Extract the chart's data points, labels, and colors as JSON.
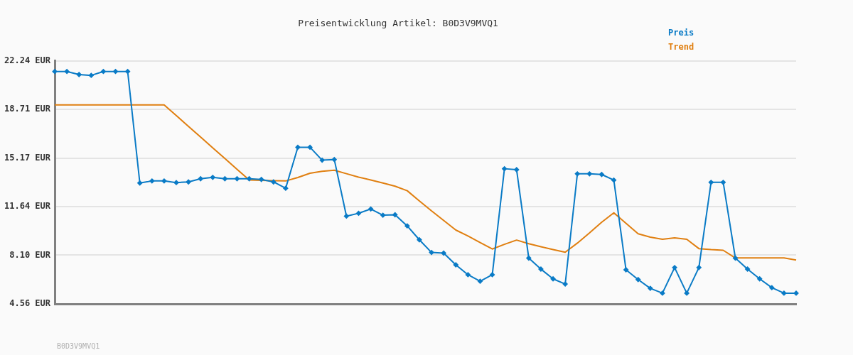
{
  "chart_data": {
    "type": "line",
    "title": "Preisentwicklung Artikel: B0D3V9MVQ1",
    "categories": [
      null,
      null,
      null,
      null,
      null,
      null,
      null,
      null,
      null,
      null,
      null,
      null,
      null,
      null,
      null,
      null,
      null,
      null,
      null,
      null,
      null,
      null,
      null,
      null,
      null,
      null,
      null,
      null,
      null,
      null,
      null,
      null,
      null,
      null,
      null,
      null,
      null,
      null,
      null,
      null,
      null,
      null,
      null,
      null,
      null,
      null,
      null,
      null,
      null,
      null,
      null,
      null,
      null,
      null,
      null,
      null,
      null,
      null,
      null,
      null,
      null,
      null
    ],
    "series": [
      {
        "name": "Preis",
        "color": "#0a7bc6",
        "marker": "diamond",
        "values": [
          21.46,
          21.46,
          21.24,
          21.18,
          21.46,
          21.46,
          21.46,
          13.35,
          13.5,
          13.5,
          13.38,
          13.43,
          13.66,
          13.76,
          13.66,
          13.66,
          13.66,
          13.61,
          13.43,
          12.97,
          15.95,
          15.95,
          15.01,
          15.06,
          10.94,
          11.15,
          11.46,
          11.01,
          11.04,
          10.23,
          9.22,
          8.3,
          8.25,
          7.4,
          6.68,
          6.21,
          6.68,
          14.39,
          14.32,
          7.89,
          7.09,
          6.38,
          6.0,
          14.02,
          14.02,
          13.97,
          13.56,
          7.04,
          6.33,
          5.69,
          5.34,
          7.2,
          5.34,
          7.2,
          13.4,
          13.4,
          7.89,
          7.09,
          6.38,
          5.74,
          5.34,
          5.34
        ]
      },
      {
        "name": "Trend",
        "color": "#e07f10",
        "marker": "none",
        "values": [
          19.03,
          19.03,
          19.03,
          19.03,
          19.03,
          19.03,
          19.03,
          19.03,
          19.03,
          19.03,
          18.25,
          17.47,
          16.69,
          15.91,
          15.13,
          14.35,
          13.57,
          13.55,
          13.52,
          13.5,
          13.75,
          14.06,
          14.2,
          14.28,
          14.03,
          13.78,
          13.57,
          13.35,
          13.12,
          12.79,
          12.05,
          11.32,
          10.63,
          9.93,
          9.5,
          9.02,
          8.55,
          8.89,
          9.2,
          8.94,
          8.72,
          8.51,
          8.32,
          8.98,
          9.72,
          10.5,
          11.18,
          10.42,
          9.66,
          9.41,
          9.26,
          9.36,
          9.26,
          8.58,
          8.51,
          8.46,
          7.9,
          7.9,
          7.9,
          7.9,
          7.9,
          7.75
        ]
      }
    ],
    "ylim": [
      4.56,
      22.24
    ],
    "yticks": [
      {
        "value": 4.56,
        "label": "4.56 EUR"
      },
      {
        "value": 8.1,
        "label": "8.10 EUR"
      },
      {
        "value": 11.64,
        "label": "11.64 EUR"
      },
      {
        "value": 15.17,
        "label": "15.17 EUR"
      },
      {
        "value": 18.71,
        "label": "18.71 EUR"
      },
      {
        "value": 22.24,
        "label": "22.24 EUR"
      }
    ],
    "grid": "y",
    "legend": "top right",
    "tick_labels": "y",
    "annotations": [
      "B0D3V9MVQ1"
    ]
  }
}
